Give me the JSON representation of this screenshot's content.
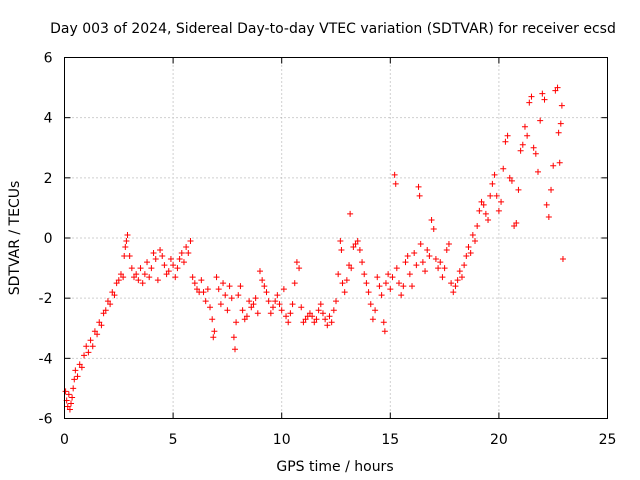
{
  "chart_data": {
    "type": "scatter",
    "title": "Day 003 of 2024, Sidereal Day-to-day VTEC variation (SDTVAR) for receiver ecsd",
    "xlabel": "GPS time / hours",
    "ylabel": "SDTVAR / TECUs",
    "xlim": [
      0,
      25
    ],
    "ylim": [
      -6,
      6
    ],
    "xticks": [
      0,
      5,
      10,
      15,
      20,
      25
    ],
    "yticks": [
      -6,
      -4,
      -2,
      0,
      2,
      4,
      6
    ],
    "grid": true,
    "marker": "+",
    "series": [
      {
        "name": "SDTVAR",
        "color": "#ff0000",
        "points": [
          [
            0.05,
            -5.1
          ],
          [
            0.1,
            -5.4
          ],
          [
            0.15,
            -5.6
          ],
          [
            0.2,
            -5.2
          ],
          [
            0.25,
            -5.7
          ],
          [
            0.3,
            -5.5
          ],
          [
            0.35,
            -5.3
          ],
          [
            0.4,
            -5.0
          ],
          [
            0.45,
            -4.7
          ],
          [
            0.5,
            -4.4
          ],
          [
            0.6,
            -4.6
          ],
          [
            0.7,
            -4.2
          ],
          [
            0.8,
            -4.3
          ],
          [
            0.9,
            -3.9
          ],
          [
            1.0,
            -3.6
          ],
          [
            1.1,
            -3.8
          ],
          [
            1.2,
            -3.4
          ],
          [
            1.3,
            -3.6
          ],
          [
            1.4,
            -3.1
          ],
          [
            1.5,
            -3.2
          ],
          [
            1.6,
            -2.8
          ],
          [
            1.7,
            -2.9
          ],
          [
            1.8,
            -2.5
          ],
          [
            1.9,
            -2.4
          ],
          [
            2.0,
            -2.1
          ],
          [
            2.1,
            -2.2
          ],
          [
            2.2,
            -1.8
          ],
          [
            2.3,
            -1.9
          ],
          [
            2.4,
            -1.5
          ],
          [
            2.5,
            -1.4
          ],
          [
            2.6,
            -1.2
          ],
          [
            2.7,
            -1.3
          ],
          [
            2.75,
            -0.6
          ],
          [
            2.8,
            -0.3
          ],
          [
            2.85,
            -0.1
          ],
          [
            2.9,
            0.1
          ],
          [
            3.0,
            -0.6
          ],
          [
            3.1,
            -1.0
          ],
          [
            3.2,
            -1.3
          ],
          [
            3.3,
            -1.2
          ],
          [
            3.4,
            -1.4
          ],
          [
            3.5,
            -1.0
          ],
          [
            3.6,
            -1.5
          ],
          [
            3.7,
            -1.2
          ],
          [
            3.8,
            -0.8
          ],
          [
            3.9,
            -1.3
          ],
          [
            4.0,
            -1.0
          ],
          [
            4.1,
            -0.5
          ],
          [
            4.2,
            -0.7
          ],
          [
            4.3,
            -1.4
          ],
          [
            4.4,
            -0.4
          ],
          [
            4.5,
            -0.6
          ],
          [
            4.6,
            -0.9
          ],
          [
            4.7,
            -1.2
          ],
          [
            4.8,
            -1.1
          ],
          [
            4.9,
            -0.7
          ],
          [
            5.0,
            -0.9
          ],
          [
            5.1,
            -1.3
          ],
          [
            5.2,
            -1.0
          ],
          [
            5.3,
            -0.7
          ],
          [
            5.4,
            -0.5
          ],
          [
            5.5,
            -0.8
          ],
          [
            5.6,
            -0.3
          ],
          [
            5.7,
            -0.5
          ],
          [
            5.8,
            -0.1
          ],
          [
            5.9,
            -1.3
          ],
          [
            6.0,
            -1.5
          ],
          [
            6.1,
            -1.7
          ],
          [
            6.2,
            -1.8
          ],
          [
            6.3,
            -1.4
          ],
          [
            6.4,
            -1.8
          ],
          [
            6.5,
            -2.1
          ],
          [
            6.6,
            -1.7
          ],
          [
            6.7,
            -2.3
          ],
          [
            6.8,
            -2.7
          ],
          [
            6.85,
            -3.3
          ],
          [
            6.9,
            -3.1
          ],
          [
            7.0,
            -1.3
          ],
          [
            7.1,
            -1.7
          ],
          [
            7.2,
            -2.2
          ],
          [
            7.3,
            -1.5
          ],
          [
            7.4,
            -1.9
          ],
          [
            7.5,
            -2.4
          ],
          [
            7.6,
            -1.6
          ],
          [
            7.7,
            -2.0
          ],
          [
            7.8,
            -3.3
          ],
          [
            7.85,
            -3.7
          ],
          [
            7.9,
            -2.8
          ],
          [
            8.0,
            -1.9
          ],
          [
            8.1,
            -1.6
          ],
          [
            8.2,
            -2.4
          ],
          [
            8.3,
            -2.7
          ],
          [
            8.4,
            -2.6
          ],
          [
            8.5,
            -2.1
          ],
          [
            8.6,
            -2.3
          ],
          [
            8.7,
            -2.2
          ],
          [
            8.8,
            -2.0
          ],
          [
            8.9,
            -2.5
          ],
          [
            9.0,
            -1.1
          ],
          [
            9.1,
            -1.4
          ],
          [
            9.2,
            -1.6
          ],
          [
            9.3,
            -1.8
          ],
          [
            9.4,
            -2.1
          ],
          [
            9.5,
            -2.5
          ],
          [
            9.6,
            -2.3
          ],
          [
            9.7,
            -2.1
          ],
          [
            9.8,
            -1.9
          ],
          [
            9.9,
            -2.2
          ],
          [
            10.0,
            -2.4
          ],
          [
            10.1,
            -1.7
          ],
          [
            10.2,
            -2.6
          ],
          [
            10.3,
            -2.8
          ],
          [
            10.4,
            -2.5
          ],
          [
            10.5,
            -2.2
          ],
          [
            10.6,
            -1.5
          ],
          [
            10.7,
            -0.8
          ],
          [
            10.8,
            -1.0
          ],
          [
            10.9,
            -2.3
          ],
          [
            11.0,
            -2.8
          ],
          [
            11.1,
            -2.7
          ],
          [
            11.2,
            -2.6
          ],
          [
            11.3,
            -2.5
          ],
          [
            11.4,
            -2.6
          ],
          [
            11.5,
            -2.8
          ],
          [
            11.6,
            -2.7
          ],
          [
            11.7,
            -2.4
          ],
          [
            11.8,
            -2.2
          ],
          [
            11.9,
            -2.5
          ],
          [
            12.0,
            -2.7
          ],
          [
            12.1,
            -2.9
          ],
          [
            12.2,
            -2.6
          ],
          [
            12.3,
            -2.8
          ],
          [
            12.4,
            -2.4
          ],
          [
            12.5,
            -2.1
          ],
          [
            12.6,
            -1.2
          ],
          [
            12.7,
            -0.1
          ],
          [
            12.75,
            -0.4
          ],
          [
            12.8,
            -1.5
          ],
          [
            12.9,
            -1.8
          ],
          [
            13.0,
            -1.4
          ],
          [
            13.1,
            -0.9
          ],
          [
            13.15,
            0.8
          ],
          [
            13.2,
            -1.0
          ],
          [
            13.3,
            -0.3
          ],
          [
            13.4,
            -0.2
          ],
          [
            13.5,
            -0.1
          ],
          [
            13.6,
            -0.4
          ],
          [
            13.7,
            -0.8
          ],
          [
            13.8,
            -1.2
          ],
          [
            13.9,
            -1.5
          ],
          [
            14.0,
            -1.8
          ],
          [
            14.1,
            -2.2
          ],
          [
            14.2,
            -2.7
          ],
          [
            14.3,
            -2.4
          ],
          [
            14.4,
            -1.3
          ],
          [
            14.5,
            -1.6
          ],
          [
            14.6,
            -1.9
          ],
          [
            14.7,
            -2.8
          ],
          [
            14.75,
            -3.1
          ],
          [
            14.8,
            -1.5
          ],
          [
            14.9,
            -1.2
          ],
          [
            15.0,
            -1.7
          ],
          [
            15.1,
            -1.3
          ],
          [
            15.2,
            2.1
          ],
          [
            15.25,
            1.8
          ],
          [
            15.3,
            -1.0
          ],
          [
            15.4,
            -1.5
          ],
          [
            15.5,
            -1.9
          ],
          [
            15.6,
            -1.6
          ],
          [
            15.7,
            -0.8
          ],
          [
            15.8,
            -0.6
          ],
          [
            15.9,
            -1.2
          ],
          [
            16.0,
            -1.6
          ],
          [
            16.1,
            -0.5
          ],
          [
            16.2,
            -0.9
          ],
          [
            16.3,
            1.7
          ],
          [
            16.35,
            1.4
          ],
          [
            16.4,
            -0.2
          ],
          [
            16.5,
            -0.8
          ],
          [
            16.6,
            -1.1
          ],
          [
            16.7,
            -0.4
          ],
          [
            16.8,
            -0.6
          ],
          [
            16.9,
            0.6
          ],
          [
            17.0,
            0.3
          ],
          [
            17.1,
            -0.7
          ],
          [
            17.2,
            -1.0
          ],
          [
            17.3,
            -0.8
          ],
          [
            17.4,
            -1.3
          ],
          [
            17.5,
            -1.0
          ],
          [
            17.6,
            -0.4
          ],
          [
            17.7,
            -0.2
          ],
          [
            17.8,
            -1.5
          ],
          [
            17.9,
            -1.8
          ],
          [
            18.0,
            -1.6
          ],
          [
            18.1,
            -1.4
          ],
          [
            18.2,
            -1.1
          ],
          [
            18.3,
            -1.3
          ],
          [
            18.4,
            -0.9
          ],
          [
            18.5,
            -0.6
          ],
          [
            18.6,
            -0.3
          ],
          [
            18.7,
            -0.5
          ],
          [
            18.8,
            0.1
          ],
          [
            18.9,
            -0.1
          ],
          [
            19.0,
            0.4
          ],
          [
            19.1,
            0.9
          ],
          [
            19.2,
            1.2
          ],
          [
            19.3,
            1.1
          ],
          [
            19.4,
            0.8
          ],
          [
            19.5,
            0.6
          ],
          [
            19.6,
            1.4
          ],
          [
            19.7,
            1.8
          ],
          [
            19.8,
            2.1
          ],
          [
            19.9,
            1.4
          ],
          [
            20.0,
            0.9
          ],
          [
            20.1,
            1.2
          ],
          [
            20.2,
            2.3
          ],
          [
            20.3,
            3.2
          ],
          [
            20.4,
            3.4
          ],
          [
            20.5,
            2.0
          ],
          [
            20.6,
            1.9
          ],
          [
            20.7,
            0.4
          ],
          [
            20.8,
            0.5
          ],
          [
            20.9,
            1.6
          ],
          [
            21.0,
            2.9
          ],
          [
            21.1,
            3.1
          ],
          [
            21.2,
            3.7
          ],
          [
            21.3,
            3.4
          ],
          [
            21.4,
            4.5
          ],
          [
            21.5,
            4.7
          ],
          [
            21.6,
            3.0
          ],
          [
            21.7,
            2.8
          ],
          [
            21.8,
            2.2
          ],
          [
            21.9,
            3.9
          ],
          [
            22.0,
            4.8
          ],
          [
            22.1,
            4.6
          ],
          [
            22.2,
            1.1
          ],
          [
            22.3,
            0.7
          ],
          [
            22.4,
            1.6
          ],
          [
            22.5,
            2.4
          ],
          [
            22.6,
            4.9
          ],
          [
            22.7,
            5.0
          ],
          [
            22.75,
            3.5
          ],
          [
            22.8,
            2.5
          ],
          [
            22.85,
            3.8
          ],
          [
            22.9,
            4.4
          ],
          [
            22.95,
            -0.7
          ]
        ]
      }
    ]
  }
}
